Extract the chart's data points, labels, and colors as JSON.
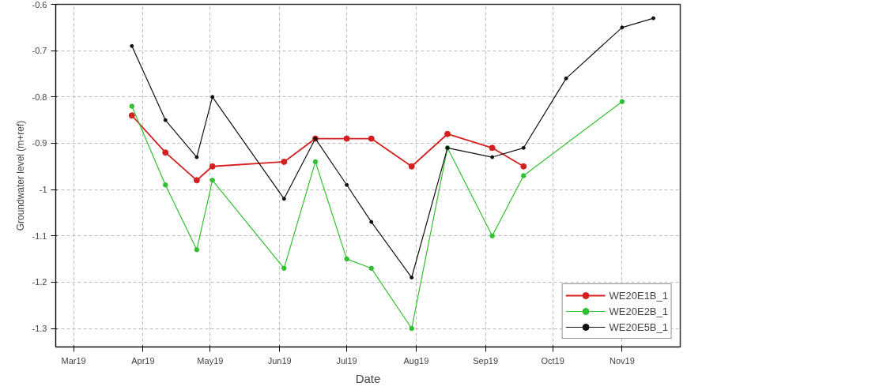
{
  "chart_data": {
    "type": "line",
    "xlabel": "Date",
    "ylabel": "Groundwater level (m+ref)",
    "xlim": [
      "2019-02-21",
      "2019-11-27"
    ],
    "xticks": [
      {
        "value": "2019-03-01",
        "label": "Mar19"
      },
      {
        "value": "2019-04-01",
        "label": "Apr19"
      },
      {
        "value": "2019-05-01",
        "label": "May19"
      },
      {
        "value": "2019-06-01",
        "label": "Jun19"
      },
      {
        "value": "2019-07-01",
        "label": "Jul19"
      },
      {
        "value": "2019-08-01",
        "label": "Aug19"
      },
      {
        "value": "2019-09-01",
        "label": "Sep19"
      },
      {
        "value": "2019-10-01",
        "label": "Oct19"
      },
      {
        "value": "2019-11-01",
        "label": "Nov19"
      }
    ],
    "ylim": [
      -1.34,
      -0.6
    ],
    "yticks": [
      {
        "value": -1.3,
        "label": "-1.3"
      },
      {
        "value": -1.2,
        "label": "-1.2"
      },
      {
        "value": -1.1,
        "label": "-1.1"
      },
      {
        "value": -1,
        "label": "-1"
      },
      {
        "value": -0.9,
        "label": "-0.9"
      },
      {
        "value": -0.8,
        "label": "-0.8"
      },
      {
        "value": -0.7,
        "label": "-0.7"
      },
      {
        "value": -0.6,
        "label": "-0.6"
      }
    ],
    "grid": true,
    "legend": "bottom right",
    "marker": "circle",
    "line_style": "solid",
    "series": [
      {
        "name": "WE20E1B_1",
        "color": "#d62020",
        "x": [
          "2019-03-27",
          "2019-04-11",
          "2019-04-25",
          "2019-05-02",
          "2019-06-03",
          "2019-06-17",
          "2019-07-01",
          "2019-07-12",
          "2019-07-30",
          "2019-08-15",
          "2019-09-04",
          "2019-09-18"
        ],
        "values": [
          -0.84,
          -0.92,
          -0.98,
          -0.95,
          -0.94,
          -0.89,
          -0.89,
          -0.89,
          -0.95,
          -0.88,
          -0.91,
          -0.95
        ]
      },
      {
        "name": "WE20E2B_1",
        "color": "#30c030",
        "x": [
          "2019-03-27",
          "2019-04-11",
          "2019-04-25",
          "2019-05-02",
          "2019-06-03",
          "2019-06-17",
          "2019-07-01",
          "2019-07-12",
          "2019-07-30",
          "2019-08-15",
          "2019-09-04",
          "2019-09-18",
          "2019-11-01"
        ],
        "values": [
          -0.82,
          -0.99,
          -1.13,
          -0.98,
          -1.17,
          -0.94,
          -1.15,
          -1.17,
          -1.3,
          -0.91,
          -1.1,
          -0.97,
          -0.81
        ]
      },
      {
        "name": "WE20E5B_1",
        "color": "#101010",
        "x": [
          "2019-03-27",
          "2019-04-11",
          "2019-04-25",
          "2019-05-02",
          "2019-06-03",
          "2019-06-17",
          "2019-07-01",
          "2019-07-12",
          "2019-07-30",
          "2019-08-15",
          "2019-09-04",
          "2019-09-18",
          "2019-10-07",
          "2019-11-01",
          "2019-11-15"
        ],
        "values": [
          -0.69,
          -0.85,
          -0.93,
          -0.8,
          -1.02,
          -0.89,
          -0.99,
          -1.07,
          -1.19,
          -0.91,
          -0.93,
          -0.91,
          -0.76,
          -0.65,
          -0.63
        ]
      }
    ]
  }
}
